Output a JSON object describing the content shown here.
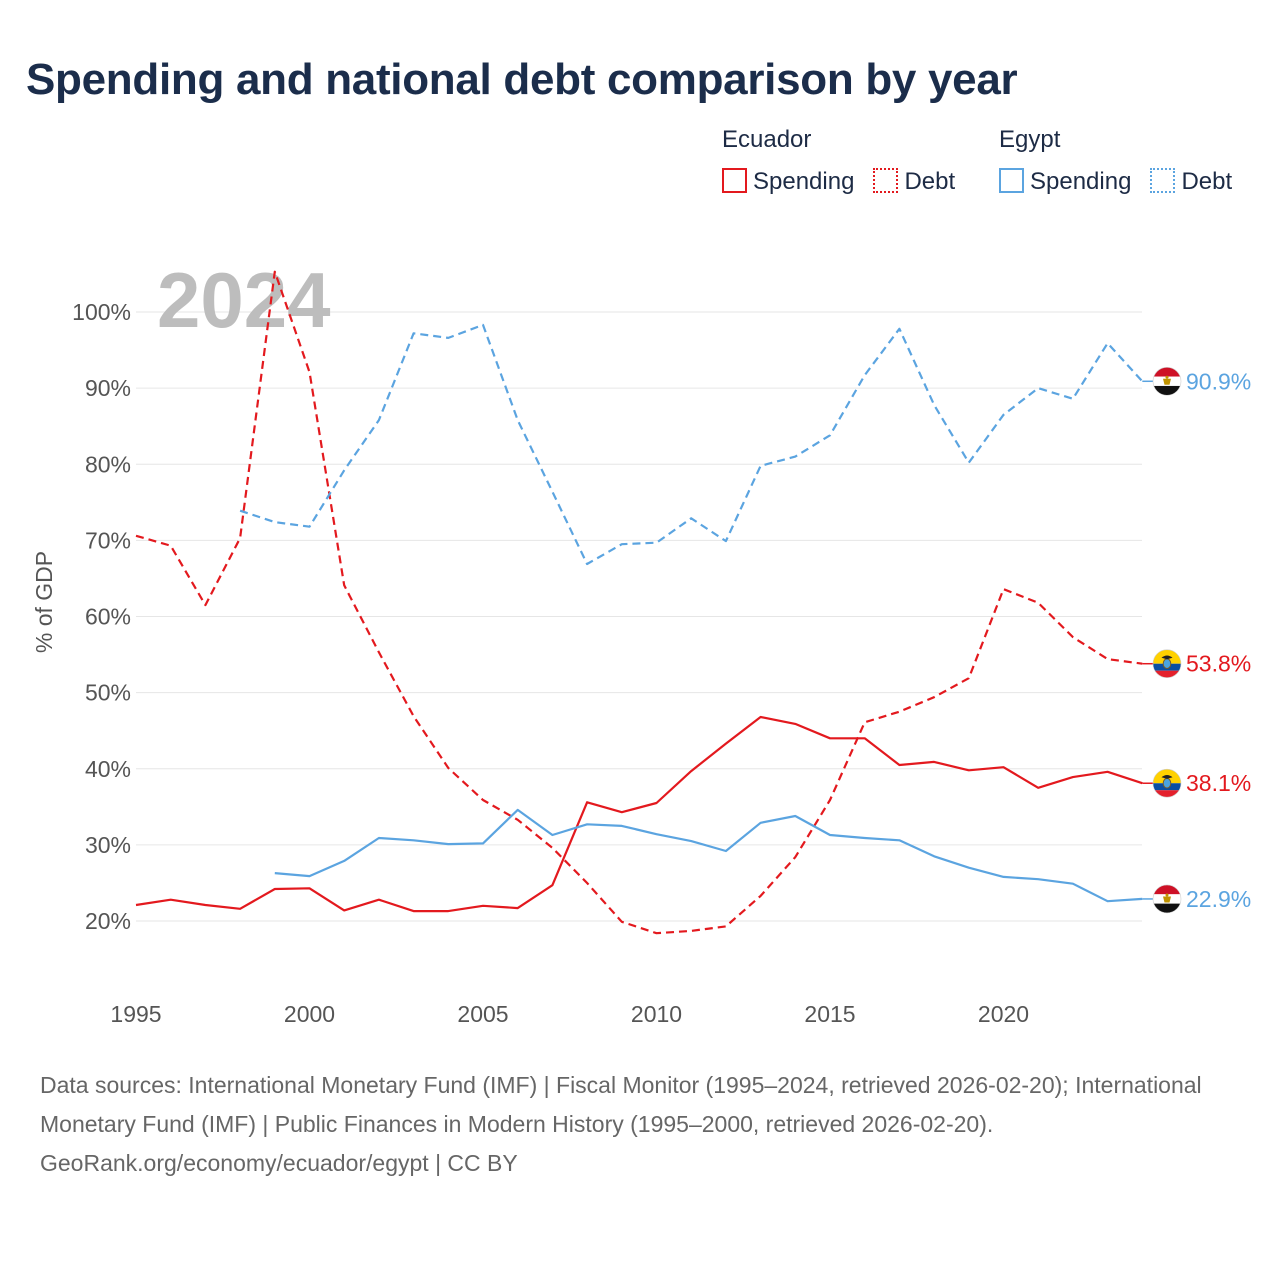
{
  "chart_data": {
    "type": "line",
    "title": "Spending and national debt comparison by year",
    "xlabel": "",
    "ylabel": "% of GDP",
    "year_label": "2024",
    "xlim": [
      1995,
      2024
    ],
    "ylim": [
      14,
      108
    ],
    "grid": true,
    "legend_position": "top-right",
    "x_ticks": [
      1995,
      2000,
      2005,
      2010,
      2015,
      2020
    ],
    "x_tick_labels": [
      "1995",
      "2000",
      "2005",
      "2010",
      "2015",
      "2020"
    ],
    "y_ticks": [
      20,
      30,
      40,
      50,
      60,
      70,
      80,
      90,
      100
    ],
    "y_tick_labels": [
      "20%",
      "30%",
      "40%",
      "50%",
      "60%",
      "70%",
      "80%",
      "90%",
      "100%"
    ],
    "groups": [
      {
        "country": "Ecuador",
        "color": "#e3191e",
        "flag_icon": "ecuador-flag-icon",
        "series": [
          {
            "label": "Spending",
            "dashed": false,
            "x": [
              1995,
              1996,
              1997,
              1998,
              1999,
              2000,
              2001,
              2002,
              2003,
              2004,
              2005,
              2006,
              2007,
              2008,
              2009,
              2010,
              2011,
              2012,
              2013,
              2014,
              2015,
              2016,
              2017,
              2018,
              2019,
              2020,
              2021,
              2022,
              2023,
              2024
            ],
            "values": [
              22.1,
              22.8,
              22.1,
              21.6,
              24.2,
              24.3,
              21.4,
              22.8,
              21.3,
              21.3,
              22.0,
              21.7,
              24.7,
              35.6,
              34.3,
              35.5,
              39.7,
              43.3,
              46.8,
              45.9,
              44.0,
              44.0,
              40.5,
              40.9,
              39.8,
              40.2,
              37.5,
              38.9,
              39.6,
              38.1
            ],
            "end_label": "38.1%"
          },
          {
            "label": "Debt",
            "dashed": true,
            "x": [
              1995,
              1996,
              1997,
              1998,
              1999,
              2000,
              2001,
              2002,
              2003,
              2004,
              2005,
              2006,
              2007,
              2008,
              2009,
              2010,
              2011,
              2012,
              2013,
              2014,
              2015,
              2016,
              2017,
              2018,
              2019,
              2020,
              2021,
              2022,
              2023,
              2024
            ],
            "values": [
              70.6,
              69.3,
              61.5,
              70.3,
              105.3,
              92.1,
              64.1,
              55.3,
              46.9,
              40.1,
              35.9,
              33.3,
              29.6,
              25.0,
              19.9,
              18.4,
              18.7,
              19.3,
              23.3,
              28.4,
              35.9,
              46.1,
              47.5,
              49.4,
              51.9,
              63.6,
              61.8,
              57.3,
              54.4,
              53.8
            ],
            "end_label": "53.8%"
          }
        ]
      },
      {
        "country": "Egypt",
        "color": "#5ba4e0",
        "flag_icon": "egypt-flag-icon",
        "series": [
          {
            "label": "Spending",
            "dashed": false,
            "x": [
              1999,
              2000,
              2001,
              2002,
              2003,
              2004,
              2005,
              2006,
              2007,
              2008,
              2009,
              2010,
              2011,
              2012,
              2013,
              2014,
              2015,
              2016,
              2017,
              2018,
              2019,
              2020,
              2021,
              2022,
              2023,
              2024
            ],
            "values": [
              26.3,
              25.9,
              27.9,
              30.9,
              30.6,
              30.1,
              30.2,
              34.6,
              31.3,
              32.7,
              32.5,
              31.4,
              30.5,
              29.2,
              32.9,
              33.8,
              31.3,
              30.9,
              30.6,
              28.5,
              27.0,
              25.8,
              25.5,
              24.9,
              22.6,
              22.9
            ],
            "end_label": "22.9%"
          },
          {
            "label": "Debt",
            "dashed": true,
            "x": [
              1998,
              1999,
              2000,
              2001,
              2002,
              2003,
              2004,
              2005,
              2006,
              2007,
              2008,
              2009,
              2010,
              2011,
              2012,
              2013,
              2014,
              2015,
              2016,
              2017,
              2018,
              2019,
              2020,
              2021,
              2022,
              2023,
              2024
            ],
            "values": [
              73.9,
              72.4,
              71.8,
              79.2,
              85.8,
              97.2,
              96.6,
              98.3,
              85.8,
              76.4,
              66.9,
              69.5,
              69.7,
              72.9,
              69.9,
              79.8,
              81.0,
              83.8,
              91.7,
              97.8,
              87.8,
              80.2,
              86.5,
              90.0,
              88.6,
              95.9,
              90.9
            ],
            "end_label": "90.9%"
          }
        ]
      }
    ]
  },
  "footer": {
    "sources": "Data sources: International Monetary Fund (IMF) | Fiscal Monitor (1995–2024, retrieved 2026-02-20); International Monetary Fund (IMF) | Public Finances in Modern History (1995–2000, retrieved 2026-02-20).",
    "credit": "GeoRank.org/economy/ecuador/egypt | CC BY"
  }
}
